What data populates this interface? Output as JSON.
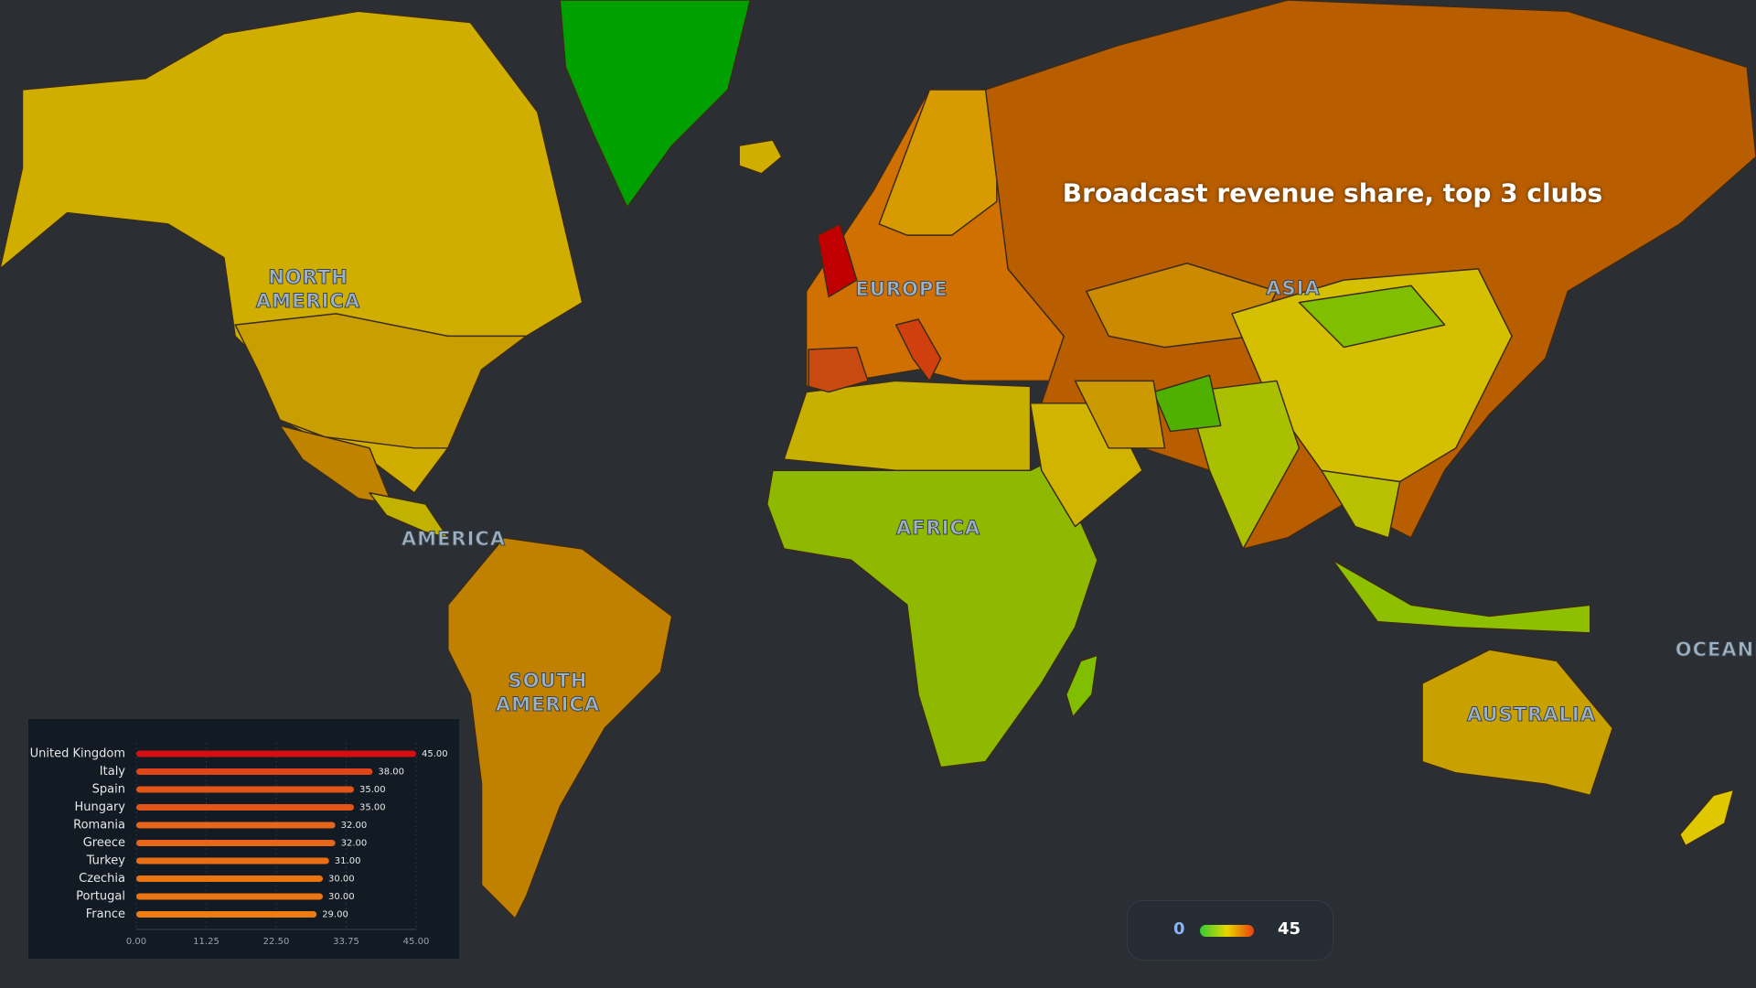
{
  "title": "Broadcast revenue share, top 3 clubs",
  "continent_labels": [
    "NORTH AMERICA",
    "EUROPE",
    "ASIA",
    "AMERICA",
    "AFRICA",
    "SOUTH AMERICA",
    "AUSTRALIA",
    "OCEANIA"
  ],
  "legend": {
    "min": 0,
    "max": 45,
    "colors": [
      "#33cc33",
      "#e6d600",
      "#e8400f"
    ]
  },
  "chart_data": {
    "type": "hbar",
    "categories": [
      "United Kingdom",
      "Italy",
      "Spain",
      "Hungary",
      "Romania",
      "Greece",
      "Turkey",
      "Czechia",
      "Portugal",
      "France"
    ],
    "values": [
      45,
      38,
      35,
      35,
      32,
      32,
      31,
      30,
      30,
      29
    ],
    "value_labels": [
      "45.00",
      "38.00",
      "35.00",
      "35.00",
      "32.00",
      "32.00",
      "31.00",
      "30.00",
      "30.00",
      "29.00"
    ],
    "colors": [
      "#d40f12",
      "#e0451a",
      "#e35516",
      "#e35516",
      "#e8661a",
      "#e8661a",
      "#ea6e14",
      "#ec7512",
      "#ec7512",
      "#ee7c10"
    ],
    "xlim": [
      0,
      45
    ],
    "xticks": [
      {
        "value": 0,
        "label": "0.00"
      },
      {
        "value": 11.25,
        "label": "11.25"
      },
      {
        "value": 22.5,
        "label": "22.50"
      },
      {
        "value": 33.75,
        "label": "33.75"
      },
      {
        "value": 45,
        "label": "45.00"
      }
    ],
    "grid": true
  }
}
